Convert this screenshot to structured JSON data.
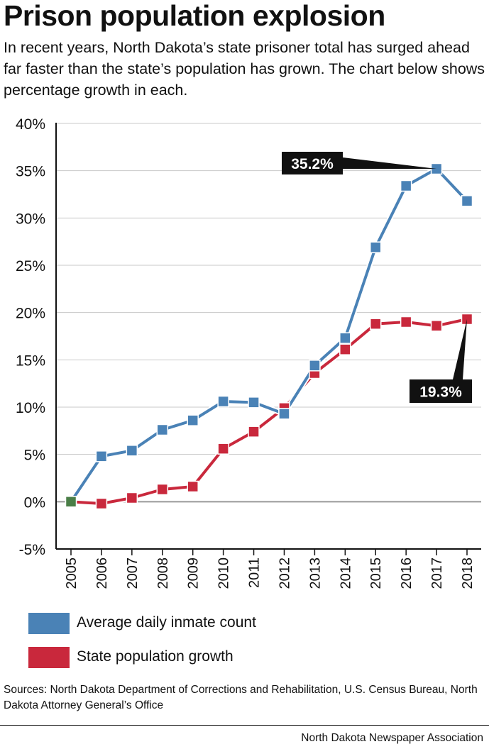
{
  "title": "Prison population explosion",
  "subtitle": "In recent years, North Dakota’s state prisoner total has surged ahead far faster than the state’s population has grown. The chart below shows percentage growth in each.",
  "legend": [
    {
      "label": "Average daily inmate count",
      "color": "#4a82b6"
    },
    {
      "label": "State population growth",
      "color": "#c9283c"
    }
  ],
  "sources": "Sources: North Dakota Department of Corrections and Rehabilitation, U.S. Census Bureau, North Dakota Attorney General’s Office",
  "credit": "North Dakota Newspaper Association",
  "chart_data": {
    "type": "line",
    "x": [
      2005,
      2006,
      2007,
      2008,
      2009,
      2010,
      2011,
      2012,
      2013,
      2014,
      2015,
      2016,
      2017,
      2018
    ],
    "ylim": [
      -5,
      40
    ],
    "yticks": [
      -5,
      0,
      5,
      10,
      15,
      20,
      25,
      30,
      35,
      40
    ],
    "ytick_labels": [
      "-5%",
      "0%",
      "5%",
      "10%",
      "15%",
      "20%",
      "25%",
      "30%",
      "35%",
      "40%"
    ],
    "grid": "horizontal",
    "legend_position": "bottom",
    "series": [
      {
        "name": "Average daily inmate count",
        "color": "#4a82b6",
        "values": [
          0,
          4.8,
          5.4,
          7.6,
          8.6,
          10.6,
          10.5,
          9.3,
          14.4,
          17.3,
          26.9,
          33.4,
          35.2,
          31.8
        ]
      },
      {
        "name": "State population growth",
        "color": "#c9283c",
        "values": [
          0,
          -0.2,
          0.4,
          1.3,
          1.6,
          5.6,
          7.4,
          9.9,
          13.6,
          16.1,
          18.8,
          19.0,
          18.6,
          19.3
        ]
      }
    ],
    "overlap_color": "#4a7e47",
    "annotations": [
      {
        "text": "35.2%",
        "series": 0,
        "x": 2017
      },
      {
        "text": "19.3%",
        "series": 1,
        "x": 2018
      }
    ]
  }
}
